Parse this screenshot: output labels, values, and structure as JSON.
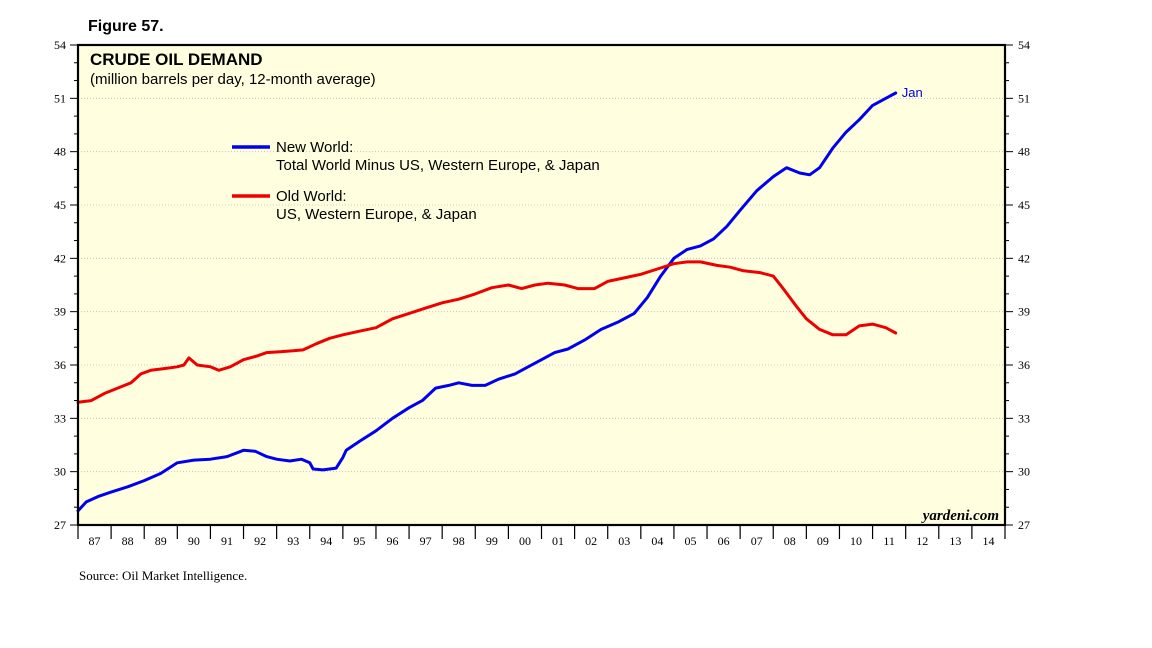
{
  "figure_label": "Figure 57.",
  "source": "Source: Oil Market Intelligence.",
  "watermark": "yardeni.com",
  "chart_data": {
    "type": "line",
    "title": "CRUDE OIL DEMAND",
    "subtitle": "(million barrels per day, 12-month average)",
    "xlabel": "",
    "ylabel": "",
    "x_range": [
      1987.0,
      2015.0
    ],
    "ylim": [
      27,
      54
    ],
    "y_ticks": [
      27,
      30,
      33,
      36,
      39,
      42,
      45,
      48,
      51,
      54
    ],
    "y_tick_labels": [
      "27",
      "30",
      "33",
      "36",
      "39",
      "42",
      "45",
      "48",
      "51",
      "54"
    ],
    "x_tick_labels": [
      "87",
      "88",
      "89",
      "90",
      "91",
      "92",
      "93",
      "94",
      "95",
      "96",
      "97",
      "98",
      "99",
      "00",
      "01",
      "02",
      "03",
      "04",
      "05",
      "06",
      "07",
      "08",
      "09",
      "10",
      "11",
      "12",
      "13",
      "14"
    ],
    "grid": true,
    "legend_position": "top-left",
    "background_color": "#ffffe0",
    "end_label": "Jan",
    "series": [
      {
        "name": "New World:",
        "name_line2": "Total World Minus US, Western Europe, & Japan",
        "color": "#0000ee",
        "points": [
          [
            1987.0,
            27.8
          ],
          [
            1987.25,
            28.3
          ],
          [
            1987.6,
            28.6
          ],
          [
            1988.0,
            28.85
          ],
          [
            1988.5,
            29.15
          ],
          [
            1989.0,
            29.5
          ],
          [
            1989.5,
            29.9
          ],
          [
            1990.0,
            30.5
          ],
          [
            1990.5,
            30.65
          ],
          [
            1991.0,
            30.7
          ],
          [
            1991.5,
            30.85
          ],
          [
            1992.0,
            31.2
          ],
          [
            1992.35,
            31.15
          ],
          [
            1992.7,
            30.85
          ],
          [
            1993.0,
            30.7
          ],
          [
            1993.4,
            30.6
          ],
          [
            1993.75,
            30.7
          ],
          [
            1994.0,
            30.5
          ],
          [
            1994.1,
            30.15
          ],
          [
            1994.4,
            30.1
          ],
          [
            1994.8,
            30.2
          ],
          [
            1995.0,
            30.8
          ],
          [
            1995.1,
            31.2
          ],
          [
            1995.5,
            31.7
          ],
          [
            1996.0,
            32.3
          ],
          [
            1996.5,
            33.0
          ],
          [
            1997.0,
            33.6
          ],
          [
            1997.4,
            34.0
          ],
          [
            1997.8,
            34.7
          ],
          [
            1998.2,
            34.85
          ],
          [
            1998.5,
            35.0
          ],
          [
            1998.9,
            34.85
          ],
          [
            1999.3,
            34.85
          ],
          [
            1999.7,
            35.2
          ],
          [
            2000.2,
            35.5
          ],
          [
            2000.5,
            35.8
          ],
          [
            2001.0,
            36.3
          ],
          [
            2001.4,
            36.7
          ],
          [
            2001.8,
            36.9
          ],
          [
            2002.3,
            37.4
          ],
          [
            2002.8,
            38.0
          ],
          [
            2003.3,
            38.4
          ],
          [
            2003.8,
            38.9
          ],
          [
            2004.2,
            39.8
          ],
          [
            2004.6,
            41.0
          ],
          [
            2005.0,
            42.0
          ],
          [
            2005.4,
            42.5
          ],
          [
            2005.8,
            42.7
          ],
          [
            2006.2,
            43.1
          ],
          [
            2006.6,
            43.8
          ],
          [
            2007.0,
            44.7
          ],
          [
            2007.5,
            45.8
          ],
          [
            2008.0,
            46.6
          ],
          [
            2008.4,
            47.1
          ],
          [
            2008.8,
            46.8
          ],
          [
            2009.1,
            46.7
          ],
          [
            2009.4,
            47.1
          ],
          [
            2009.8,
            48.2
          ],
          [
            2010.2,
            49.1
          ],
          [
            2010.6,
            49.8
          ],
          [
            2011.0,
            50.6
          ],
          [
            2011.4,
            51.0
          ],
          [
            2011.7,
            51.3
          ]
        ]
      },
      {
        "name": "Old World:",
        "name_line2": "US, Western Europe, & Japan",
        "color": "#ee0000",
        "points": [
          [
            1987.0,
            33.9
          ],
          [
            1987.4,
            34.0
          ],
          [
            1987.8,
            34.4
          ],
          [
            1988.2,
            34.7
          ],
          [
            1988.6,
            35.0
          ],
          [
            1988.9,
            35.5
          ],
          [
            1989.2,
            35.7
          ],
          [
            1989.6,
            35.8
          ],
          [
            1990.0,
            35.9
          ],
          [
            1990.2,
            36.0
          ],
          [
            1990.35,
            36.4
          ],
          [
            1990.6,
            36.0
          ],
          [
            1991.0,
            35.9
          ],
          [
            1991.25,
            35.7
          ],
          [
            1991.6,
            35.9
          ],
          [
            1992.0,
            36.3
          ],
          [
            1992.4,
            36.5
          ],
          [
            1992.7,
            36.7
          ],
          [
            1993.1,
            36.75
          ],
          [
            1993.5,
            36.8
          ],
          [
            1993.8,
            36.85
          ],
          [
            1994.2,
            37.2
          ],
          [
            1994.6,
            37.5
          ],
          [
            1995.0,
            37.7
          ],
          [
            1995.5,
            37.9
          ],
          [
            1996.0,
            38.1
          ],
          [
            1996.5,
            38.6
          ],
          [
            1997.0,
            38.9
          ],
          [
            1997.5,
            39.2
          ],
          [
            1998.0,
            39.5
          ],
          [
            1998.5,
            39.7
          ],
          [
            1999.0,
            40.0
          ],
          [
            1999.5,
            40.35
          ],
          [
            2000.0,
            40.5
          ],
          [
            2000.4,
            40.3
          ],
          [
            2000.8,
            40.5
          ],
          [
            2001.2,
            40.6
          ],
          [
            2001.7,
            40.5
          ],
          [
            2002.1,
            40.3
          ],
          [
            2002.6,
            40.3
          ],
          [
            2003.0,
            40.7
          ],
          [
            2003.5,
            40.9
          ],
          [
            2004.0,
            41.1
          ],
          [
            2004.5,
            41.4
          ],
          [
            2005.0,
            41.7
          ],
          [
            2005.4,
            41.8
          ],
          [
            2005.8,
            41.8
          ],
          [
            2006.3,
            41.6
          ],
          [
            2006.7,
            41.5
          ],
          [
            2007.1,
            41.3
          ],
          [
            2007.6,
            41.2
          ],
          [
            2008.0,
            41.0
          ],
          [
            2008.3,
            40.3
          ],
          [
            2008.7,
            39.3
          ],
          [
            2009.0,
            38.6
          ],
          [
            2009.4,
            38.0
          ],
          [
            2009.8,
            37.7
          ],
          [
            2010.2,
            37.7
          ],
          [
            2010.6,
            38.2
          ],
          [
            2011.0,
            38.3
          ],
          [
            2011.4,
            38.1
          ],
          [
            2011.7,
            37.8
          ]
        ]
      }
    ]
  }
}
